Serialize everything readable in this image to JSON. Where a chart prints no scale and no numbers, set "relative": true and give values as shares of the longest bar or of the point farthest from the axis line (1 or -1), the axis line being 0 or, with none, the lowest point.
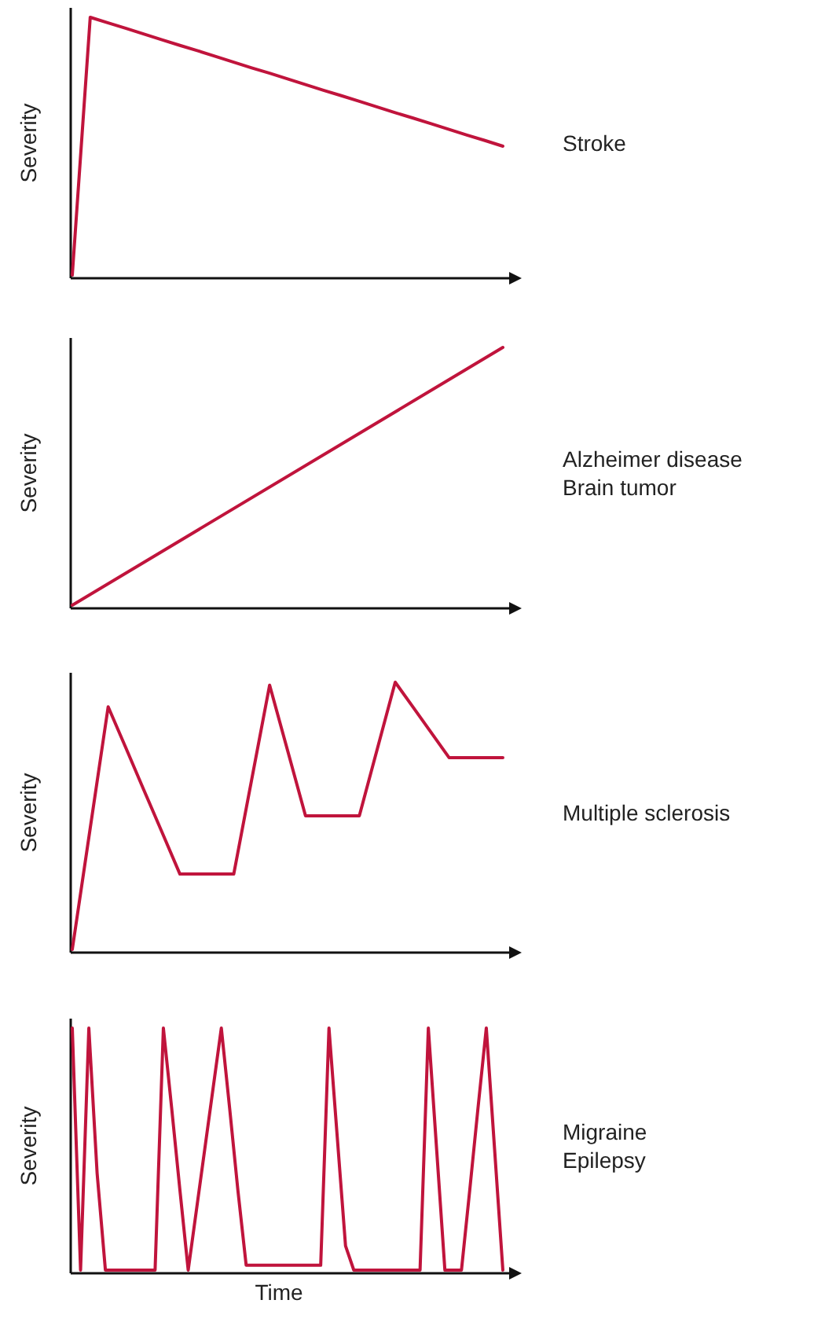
{
  "chart_data": [
    {
      "type": "line",
      "relative": true,
      "ylabel": "Severity",
      "annotations": [
        "Stroke"
      ],
      "categories": [
        null,
        null,
        null,
        null,
        null,
        null,
        null,
        null,
        null,
        null,
        null,
        null,
        null,
        null,
        null,
        null,
        null,
        null,
        null,
        null,
        null,
        null,
        null,
        null,
        null
      ],
      "series": [
        {
          "color": "#c0143c",
          "values": [
            0,
            1,
            0.978,
            0.957,
            0.935,
            0.913,
            0.891,
            0.87,
            0.848,
            0.826,
            0.804,
            0.783,
            0.761,
            0.739,
            0.717,
            0.696,
            0.674,
            0.652,
            0.63,
            0.609,
            0.587,
            0.565,
            0.543,
            0.522,
            0.5
          ]
        }
      ]
    },
    {
      "type": "line",
      "relative": true,
      "ylabel": "Severity",
      "annotations": [
        "Alzheimer disease",
        "Brain tumor"
      ],
      "categories": [
        null,
        null
      ],
      "series": [
        {
          "color": "#c0143c",
          "values": [
            0,
            1
          ]
        }
      ]
    },
    {
      "type": "line",
      "relative": true,
      "ylabel": "Severity",
      "annotations": [
        "Multiple sclerosis"
      ],
      "categories": [
        null,
        null,
        null,
        null,
        null,
        null,
        null,
        null,
        null,
        null,
        null,
        null,
        null,
        null,
        null,
        null,
        null,
        null,
        null,
        null,
        null,
        null,
        null,
        null,
        null
      ],
      "series": [
        {
          "color": "#c0143c",
          "values": [
            0,
            0.454,
            0.908,
            0.752,
            0.595,
            0.439,
            0.282,
            0.282,
            0.282,
            0.282,
            0.636,
            0.989,
            0.745,
            0.5,
            0.5,
            0.5,
            0.5,
            0.75,
            1,
            0.906,
            0.812,
            0.718,
            0.718,
            0.718,
            0.718
          ]
        }
      ]
    },
    {
      "type": "line",
      "relative": true,
      "ylabel": "Severity",
      "xlabel": "Time",
      "annotations": [
        "Migraine",
        "Epilepsy"
      ],
      "categories": [
        null,
        null,
        null,
        null,
        null,
        null,
        null,
        null,
        null,
        null,
        null,
        null,
        null,
        null,
        null,
        null,
        null,
        null,
        null,
        null,
        null,
        null,
        null,
        null,
        null,
        null,
        null,
        null,
        null,
        null,
        null,
        null,
        null,
        null,
        null,
        null,
        null,
        null,
        null,
        null,
        null,
        null,
        null,
        null,
        null,
        null,
        null,
        null,
        null,
        null,
        null,
        null,
        null
      ],
      "series": [
        {
          "color": "#c0143c",
          "values": [
            1,
            0,
            1,
            0.4,
            0,
            0,
            0,
            0,
            0,
            0,
            0,
            1,
            0.67,
            0.33,
            0,
            0.25,
            0.5,
            0.75,
            1,
            0.67,
            0.33,
            0.02,
            0.02,
            0.02,
            0.02,
            0.02,
            0.02,
            0.02,
            0.02,
            0.02,
            0.02,
            1,
            0.55,
            0.1,
            0,
            0,
            0,
            0,
            0,
            0,
            0,
            0,
            0,
            1,
            0.5,
            0,
            0,
            0,
            0.33,
            0.67,
            1,
            0.5,
            0
          ]
        }
      ]
    }
  ]
}
